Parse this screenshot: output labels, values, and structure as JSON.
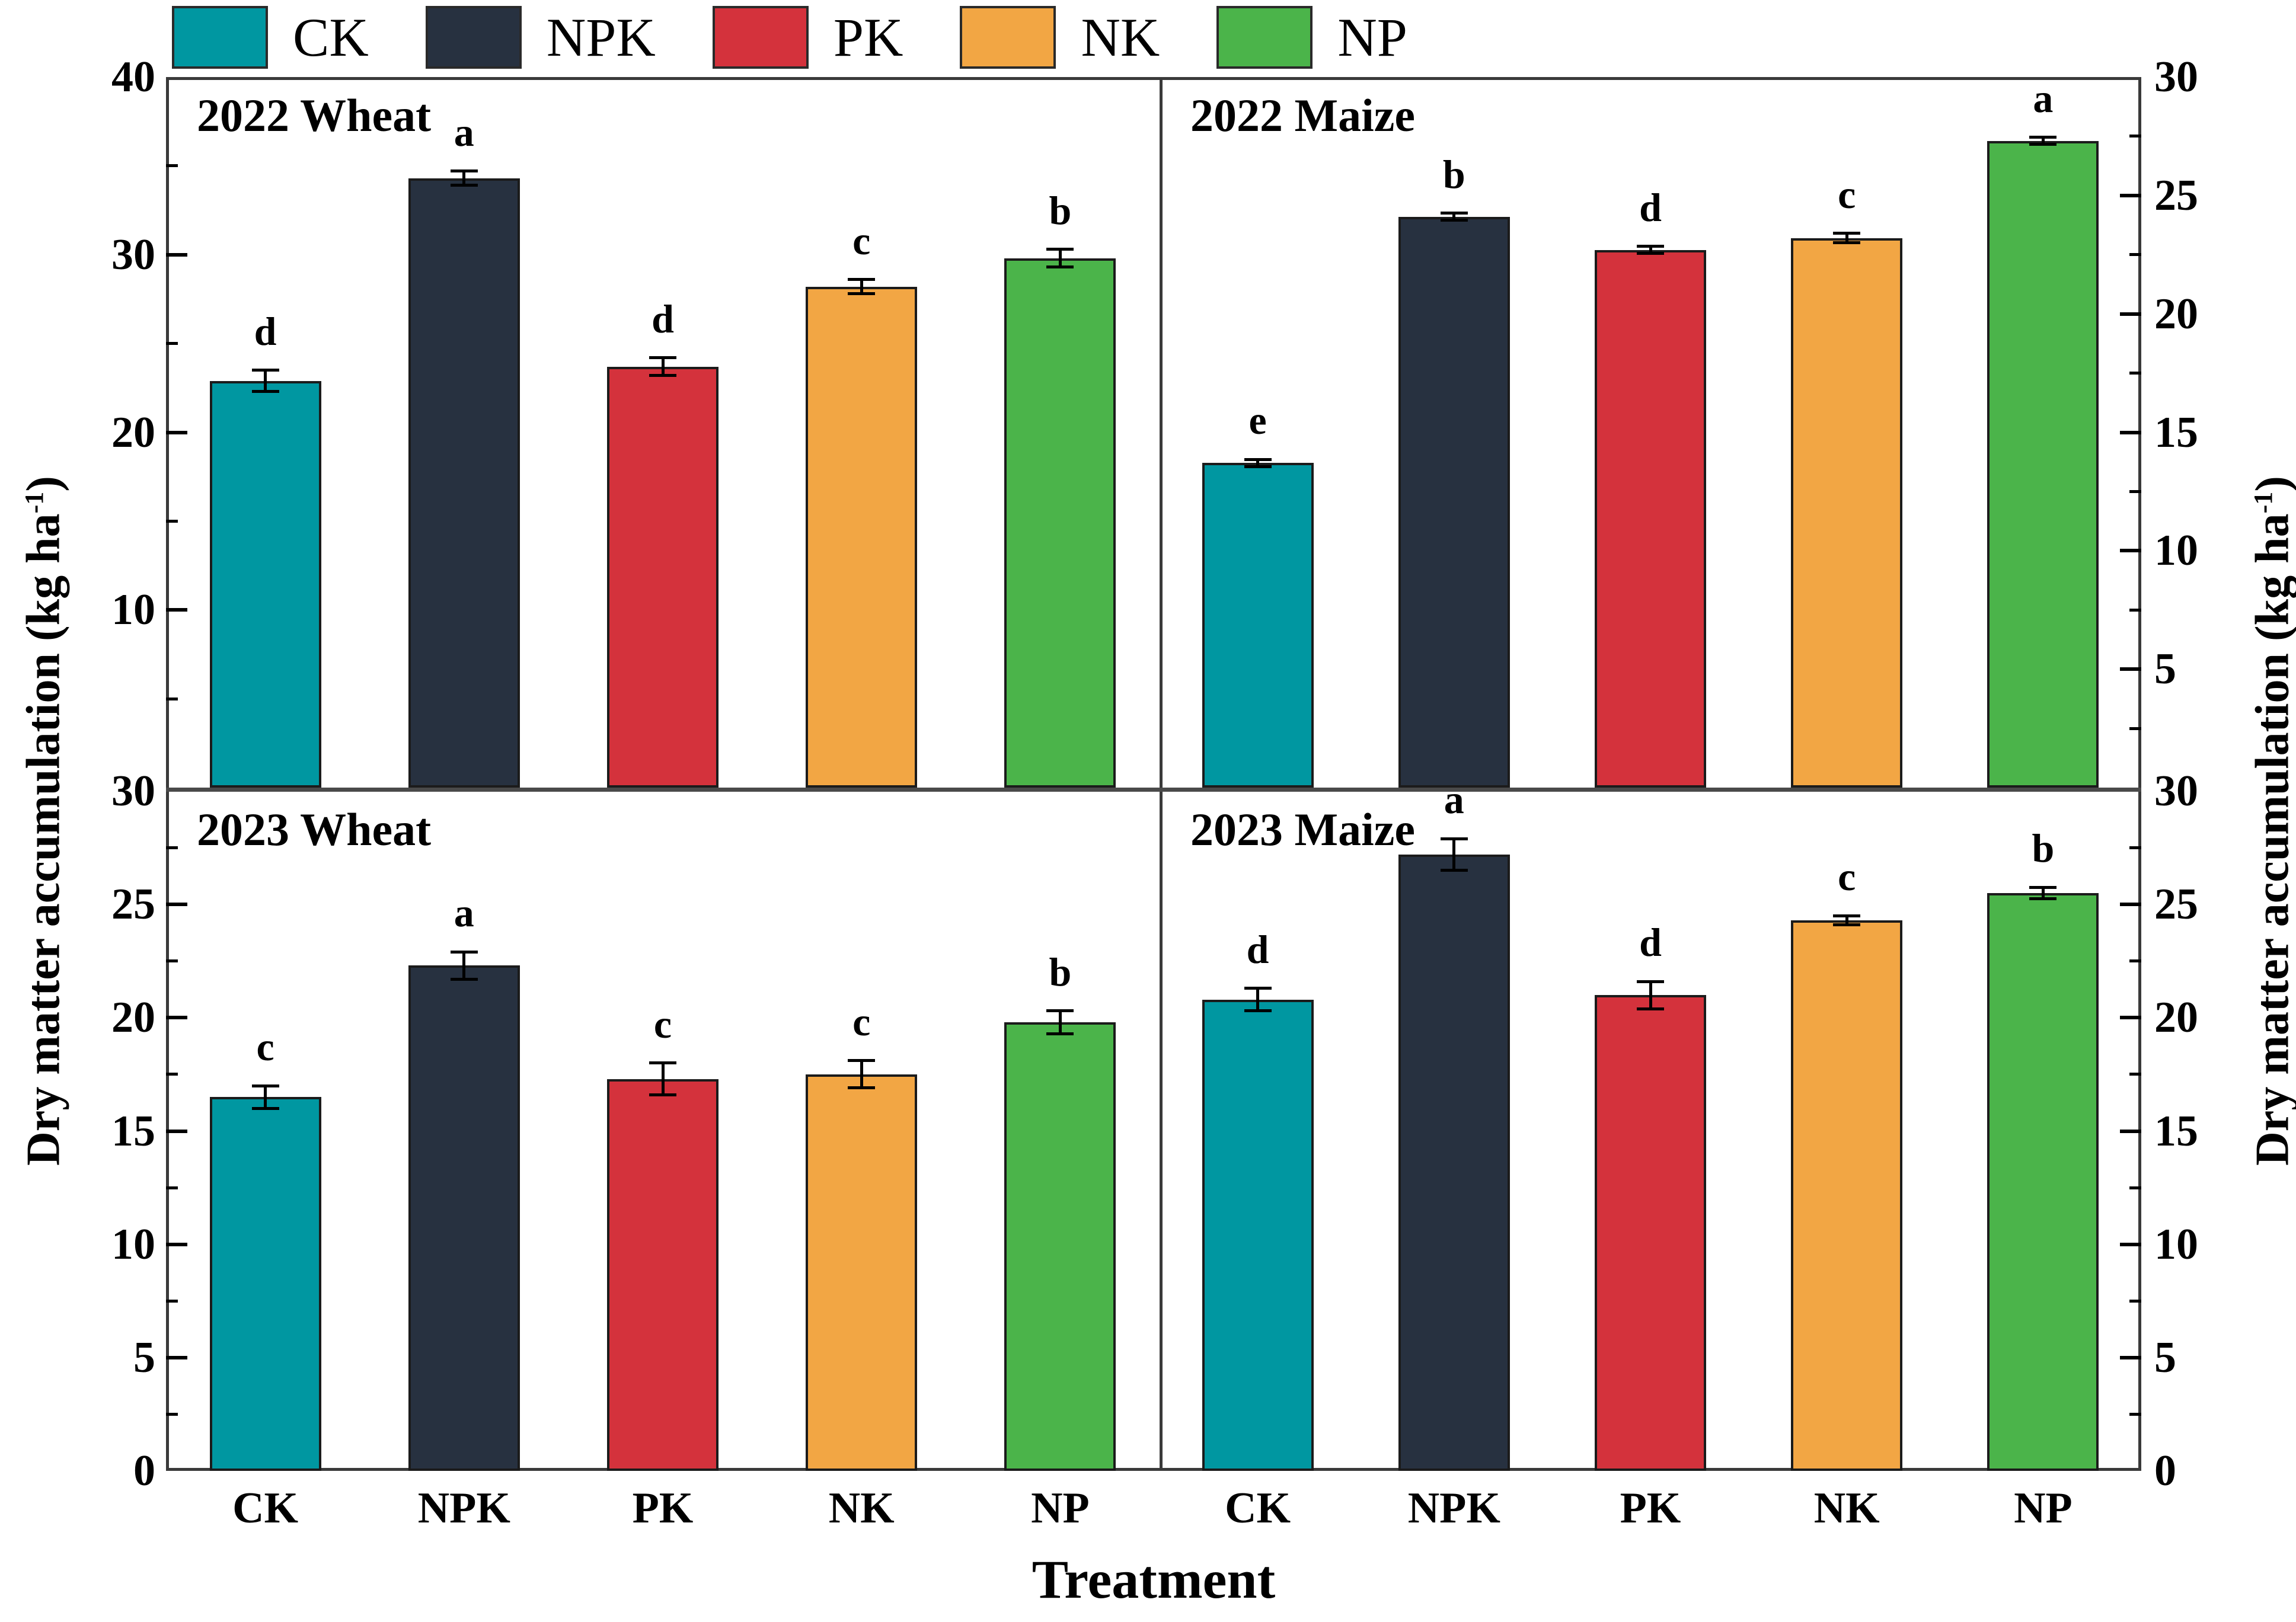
{
  "legend": {
    "items": [
      {
        "label": "CK",
        "color": "#0097a1"
      },
      {
        "label": "NPK",
        "color": "#273140"
      },
      {
        "label": "PK",
        "color": "#d4323c"
      },
      {
        "label": "NK",
        "color": "#f2a644"
      },
      {
        "label": "NP",
        "color": "#4bb44a"
      }
    ]
  },
  "axes": {
    "y_label_base": "Dry matter accumulation (kg ha",
    "y_label_sup": "-1",
    "y_label_close": ")",
    "x_label": "Treatment"
  },
  "chart_data": {
    "type": "bar",
    "categories": [
      "CK",
      "NPK",
      "PK",
      "NK",
      "NP"
    ],
    "bar_colors": [
      "#0097a1",
      "#273140",
      "#d4323c",
      "#f2a644",
      "#4bb44a"
    ],
    "grid": false,
    "legend_position": "top",
    "panels": [
      {
        "title": "2022 Wheat",
        "position": "top-left",
        "axis_side": "left",
        "ylim": [
          0,
          40
        ],
        "labeled_ticks": [
          40,
          30,
          20,
          10
        ],
        "minor_ticks": [
          5,
          15,
          25,
          35
        ],
        "values": [
          22.9,
          34.3,
          23.7,
          28.2,
          29.8
        ],
        "errors": [
          0.6,
          0.4,
          0.5,
          0.4,
          0.5
        ],
        "sig_letters": [
          "d",
          "a",
          "d",
          "c",
          "b"
        ]
      },
      {
        "title": "2022 Maize",
        "position": "top-right",
        "axis_side": "right",
        "ylim": [
          0,
          30
        ],
        "labeled_ticks": [
          30,
          25,
          20,
          15,
          10,
          5
        ],
        "minor_ticks": [
          2.5,
          7.5,
          12.5,
          17.5,
          22.5,
          27.5
        ],
        "values": [
          13.7,
          24.1,
          22.7,
          23.2,
          27.3
        ],
        "errors": [
          0.15,
          0.15,
          0.15,
          0.2,
          0.15
        ],
        "sig_letters": [
          "e",
          "b",
          "d",
          "c",
          "a"
        ]
      },
      {
        "title": "2023 Wheat",
        "position": "bottom-left",
        "axis_side": "left",
        "ylim": [
          0,
          30
        ],
        "labeled_ticks": [
          30,
          25,
          20,
          15,
          10,
          5,
          0
        ],
        "minor_ticks": [
          2.5,
          7.5,
          12.5,
          17.5,
          22.5,
          27.5
        ],
        "values": [
          16.5,
          22.3,
          17.3,
          17.5,
          19.8
        ],
        "errors": [
          0.5,
          0.6,
          0.7,
          0.6,
          0.5
        ],
        "sig_letters": [
          "c",
          "a",
          "c",
          "c",
          "b"
        ]
      },
      {
        "title": "2023 Maize",
        "position": "bottom-right",
        "axis_side": "right",
        "ylim": [
          0,
          30
        ],
        "labeled_ticks": [
          30,
          25,
          20,
          15,
          10,
          5,
          0
        ],
        "minor_ticks": [
          2.5,
          7.5,
          12.5,
          17.5,
          22.5,
          27.5
        ],
        "values": [
          20.8,
          27.2,
          21.0,
          24.3,
          25.5
        ],
        "errors": [
          0.5,
          0.7,
          0.6,
          0.2,
          0.25
        ],
        "sig_letters": [
          "d",
          "a",
          "d",
          "c",
          "b"
        ]
      }
    ],
    "ylabel": "Dry matter accumulation (kg ha-1)",
    "xlabel": "Treatment"
  }
}
